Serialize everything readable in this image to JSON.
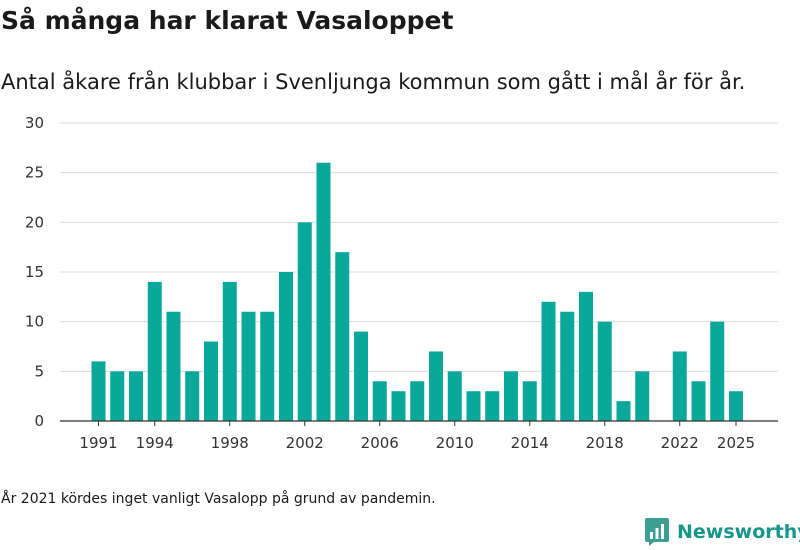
{
  "chart_data": {
    "type": "bar",
    "title": "Så många har klarat Vasaloppet",
    "subtitle": "Antal åkare från klubbar i Svenljunga kommun som gått i mål år för år.",
    "xlabel": "",
    "ylabel": "",
    "ylim": [
      0,
      30
    ],
    "yticks": [
      0,
      5,
      10,
      15,
      20,
      25,
      30
    ],
    "xticks": [
      1991,
      1994,
      1998,
      2002,
      2006,
      2010,
      2014,
      2018,
      2022,
      2025
    ],
    "x_range": [
      1990,
      2026
    ],
    "grid": true,
    "bar_color": "#0aa89a",
    "categories": [
      1991,
      1992,
      1993,
      1994,
      1995,
      1996,
      1997,
      1998,
      1999,
      2000,
      2001,
      2002,
      2003,
      2004,
      2005,
      2006,
      2007,
      2008,
      2009,
      2010,
      2011,
      2012,
      2013,
      2014,
      2015,
      2016,
      2017,
      2018,
      2019,
      2020,
      2022,
      2023,
      2024,
      2025
    ],
    "values": [
      6,
      5,
      5,
      14,
      11,
      5,
      8,
      14,
      11,
      11,
      15,
      20,
      26,
      17,
      9,
      4,
      3,
      4,
      7,
      5,
      3,
      3,
      5,
      4,
      12,
      11,
      13,
      10,
      2,
      5,
      7,
      4,
      10,
      3
    ]
  },
  "footnote": "År 2021 kördes inget vanligt Vasalopp på grund av pandemin.",
  "brand": {
    "name": "Newsworthy",
    "color": "#17978a",
    "icon": "newsworthy-logo-icon"
  }
}
